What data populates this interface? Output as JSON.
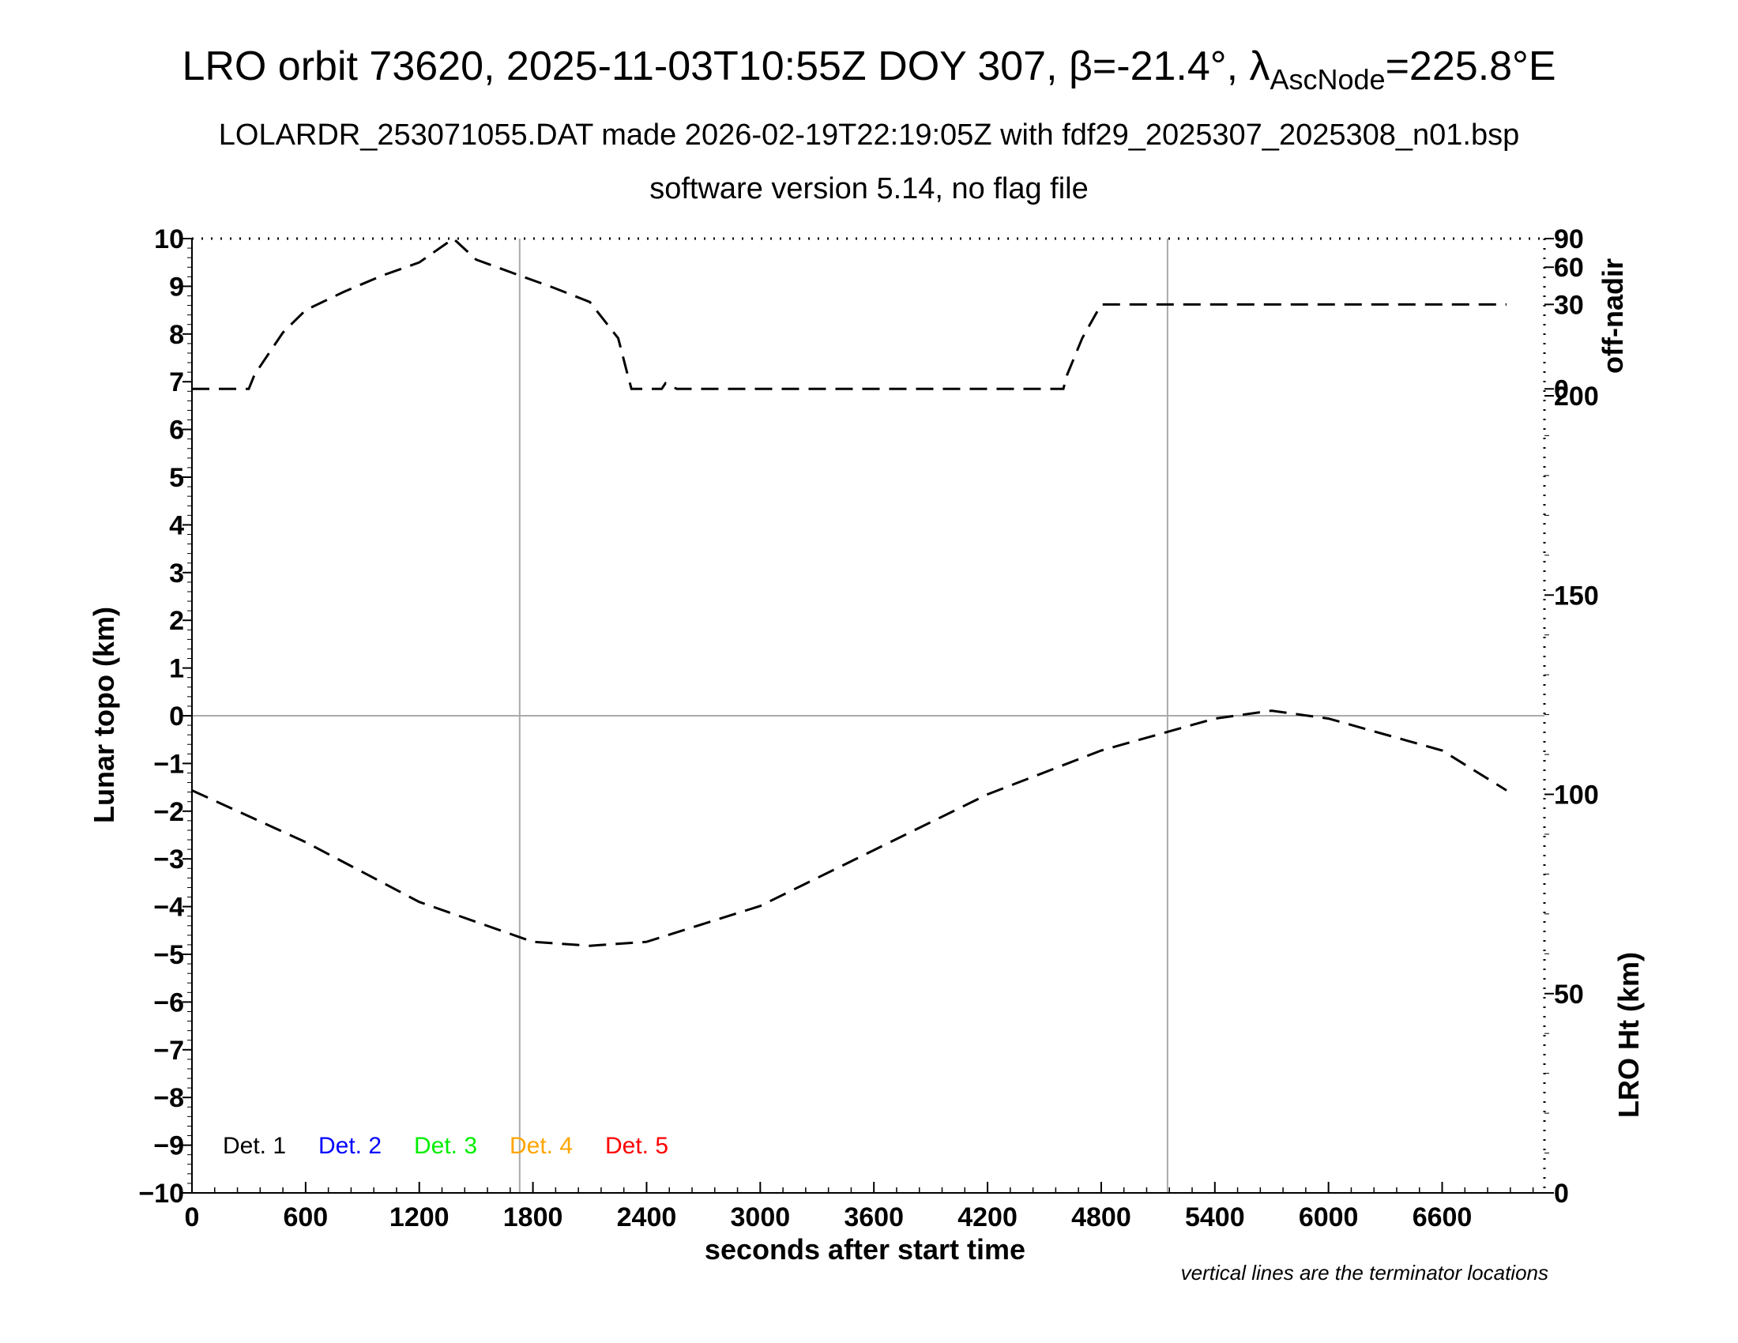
{
  "header": {
    "title_main": "LRO orbit 73620, 2025-11-03T10:55Z DOY 307, β=-21.4°, λ",
    "title_sub": "AscNode",
    "title_end": "=225.8°E",
    "subtitle": "LOLARDR_253071055.DAT made 2026-02-19T22:19:05Z with fdf29_2025307_2025308_n01.bsp",
    "subtitle2": "software version 5.14, no flag file"
  },
  "chart_data": {
    "type": "line",
    "xlabel": "seconds after start time",
    "ylabel_left": "Lunar topo (km)",
    "ylabel_right_top": "off-nadir",
    "ylabel_right_bottom": "LRO Ht (km)",
    "note": "vertical lines are the terminator locations",
    "xlim": [
      0,
      7140
    ],
    "ylim_left": [
      -10,
      10
    ],
    "x_ticks": [
      0,
      600,
      1200,
      1800,
      2400,
      3000,
      3600,
      4200,
      4800,
      5400,
      6000,
      6600
    ],
    "y_left_ticks": [
      -10,
      -9,
      -8,
      -7,
      -6,
      -5,
      -4,
      -3,
      -2,
      -1,
      0,
      1,
      2,
      3,
      4,
      5,
      6,
      7,
      8,
      9,
      10
    ],
    "y_right_offnadir_ticks": [
      0,
      30,
      60,
      90
    ],
    "y_right_height_ticks": [
      0,
      50,
      100,
      150,
      200
    ],
    "terminator_lines_x": [
      1730,
      5150
    ],
    "legend": [
      {
        "label": "Det. 1",
        "color": "#000000"
      },
      {
        "label": "Det. 2",
        "color": "#0000ff"
      },
      {
        "label": "Det. 3",
        "color": "#00ee00"
      },
      {
        "label": "Det. 4",
        "color": "#ffa500"
      },
      {
        "label": "Det. 5",
        "color": "#ff0000"
      }
    ],
    "series": [
      {
        "axis": "off-nadir",
        "x": [
          0,
          300,
          330,
          480,
          600,
          800,
          1000,
          1200,
          1380,
          1500,
          1700,
          1900,
          2100,
          2250,
          2300,
          2320,
          2480,
          2500,
          2560,
          4600,
          4620,
          4700,
          4800,
          6940
        ],
        "y": [
          0,
          0,
          5,
          20,
          28,
          40,
          53,
          65,
          90,
          68,
          55,
          44,
          32,
          18,
          5,
          0,
          0,
          2,
          0,
          0,
          5,
          18,
          30,
          30
        ]
      },
      {
        "axis": "height",
        "x": [
          0,
          600,
          1200,
          1800,
          2100,
          2400,
          3000,
          3600,
          4200,
          4800,
          5400,
          5700,
          6000,
          6600,
          6940
        ],
        "y": [
          101,
          88,
          73,
          63,
          62,
          63,
          72,
          86,
          100,
          111,
          119,
          121,
          119,
          111,
          101
        ]
      }
    ]
  }
}
